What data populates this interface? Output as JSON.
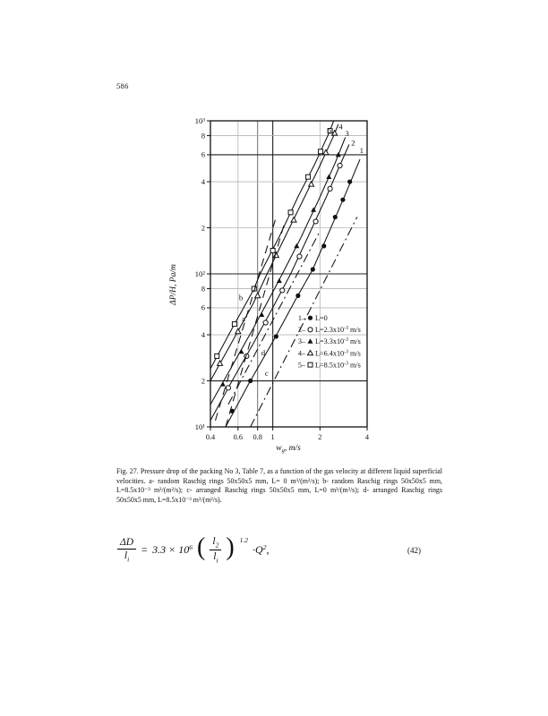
{
  "page": {
    "number": "586"
  },
  "chart_data": {
    "type": "line",
    "xscale": "log",
    "yscale": "log",
    "xlim": [
      0.4,
      4
    ],
    "ylim": [
      10,
      1000
    ],
    "xlabel": "wg, m/s",
    "xlabel_parts": {
      "main": "w",
      "sub": "g",
      "rest": ", m/s"
    },
    "ylabel": "ΔP/H, Pa/m",
    "x_ticks": [
      {
        "v": 0.4,
        "label": "0.4"
      },
      {
        "v": 0.6,
        "label": "0.6"
      },
      {
        "v": 0.8,
        "label": "0.8"
      },
      {
        "v": 1,
        "label": "1"
      },
      {
        "v": 2,
        "label": "2"
      },
      {
        "v": 4,
        "label": "4"
      }
    ],
    "y_ticks": [
      {
        "v": 1000,
        "label": "10³"
      },
      {
        "v": 800,
        "label": "8"
      },
      {
        "v": 600,
        "label": "6"
      },
      {
        "v": 400,
        "label": "4"
      },
      {
        "v": 200,
        "label": "2"
      },
      {
        "v": 100,
        "label": "10²"
      },
      {
        "v": 80,
        "label": "8"
      },
      {
        "v": 60,
        "label": "6"
      },
      {
        "v": 40,
        "label": "4"
      },
      {
        "v": 20,
        "label": "2"
      },
      {
        "v": 10,
        "label": "10¹"
      }
    ],
    "grid": {
      "x": [
        {
          "v": 0.6,
          "shade": "light"
        },
        {
          "v": 0.8,
          "shade": "medium"
        },
        {
          "v": 1,
          "shade": "dark"
        },
        {
          "v": 2,
          "shade": "light"
        }
      ],
      "y": [
        {
          "v": 800,
          "shade": "light"
        },
        {
          "v": 600,
          "shade": "dark"
        },
        {
          "v": 400,
          "shade": "light"
        },
        {
          "v": 200,
          "shade": "light"
        },
        {
          "v": 100,
          "shade": "dark"
        },
        {
          "v": 80,
          "shade": "light"
        },
        {
          "v": 60,
          "shade": "light"
        },
        {
          "v": 40,
          "shade": "light"
        },
        {
          "v": 20,
          "shade": "dark"
        }
      ]
    },
    "series": [
      {
        "id": "1",
        "name": "L=0",
        "dash": "solid",
        "marker": "circle-filled",
        "points": [
          [
            0.5,
            10
          ],
          [
            0.7,
            19
          ],
          [
            1.0,
            36
          ],
          [
            1.4,
            68
          ],
          [
            1.8,
            107
          ],
          [
            2.3,
            190
          ],
          [
            2.9,
            330
          ],
          [
            3.6,
            560
          ]
        ],
        "markers": [
          [
            0.55,
            12.7
          ],
          [
            0.72,
            20
          ],
          [
            1.05,
            39
          ],
          [
            1.45,
            72
          ],
          [
            1.8,
            107
          ],
          [
            2.12,
            152
          ],
          [
            2.5,
            235
          ],
          [
            2.8,
            305
          ],
          [
            3.1,
            400
          ]
        ],
        "label": {
          "text": "1",
          "w": 3.69,
          "P": 641
        }
      },
      {
        "id": "2",
        "name": "L=2.3x10-3 m/s",
        "dash": "solid",
        "marker": "circle-open",
        "points": [
          [
            0.4,
            11
          ],
          [
            0.55,
            20
          ],
          [
            0.75,
            35
          ],
          [
            1.0,
            60
          ],
          [
            1.3,
            100
          ],
          [
            1.7,
            180
          ],
          [
            2.2,
            320
          ],
          [
            2.7,
            520
          ],
          [
            3.07,
            700
          ]
        ],
        "markers": [
          [
            0.52,
            18
          ],
          [
            0.68,
            29
          ],
          [
            0.9,
            48
          ],
          [
            1.15,
            78
          ],
          [
            1.48,
            130
          ],
          [
            1.88,
            220
          ],
          [
            2.32,
            360
          ],
          [
            2.68,
            510
          ]
        ],
        "label": {
          "text": "2",
          "w": 3.26,
          "P": 717
        }
      },
      {
        "id": "3",
        "name": "L=3.3x10-3 m/s",
        "dash": "solid",
        "marker": "triangle-filled",
        "points": [
          [
            0.4,
            14
          ],
          [
            0.55,
            25
          ],
          [
            0.75,
            44
          ],
          [
            1.0,
            76
          ],
          [
            1.15,
            100
          ],
          [
            1.5,
            170
          ],
          [
            1.95,
            300
          ],
          [
            2.5,
            530
          ],
          [
            2.9,
            780
          ]
        ],
        "markers": [
          [
            0.48,
            19
          ],
          [
            0.63,
            31
          ],
          [
            0.85,
            54
          ],
          [
            1.1,
            90
          ],
          [
            1.42,
            152
          ],
          [
            1.82,
            262
          ],
          [
            2.28,
            430
          ],
          [
            2.62,
            600
          ]
        ],
        "label": {
          "text": "3",
          "w": 2.98,
          "P": 828
        }
      },
      {
        "id": "4",
        "name": "L=6.4x10-3 m/s",
        "dash": "solid",
        "marker": "triangle-open",
        "points": [
          [
            0.4,
            20
          ],
          [
            0.55,
            36
          ],
          [
            0.75,
            64
          ],
          [
            0.92,
            100
          ],
          [
            1.2,
            175
          ],
          [
            1.6,
            320
          ],
          [
            2.0,
            510
          ],
          [
            2.45,
            800
          ],
          [
            2.62,
            950
          ]
        ],
        "markers": [
          [
            0.46,
            26
          ],
          [
            0.6,
            42
          ],
          [
            0.8,
            72
          ],
          [
            1.05,
            132
          ],
          [
            1.36,
            225
          ],
          [
            1.76,
            385
          ],
          [
            2.18,
            620
          ],
          [
            2.48,
            830
          ]
        ],
        "label": {
          "text": "4",
          "w": 2.71,
          "P": 918
        }
      },
      {
        "id": "5",
        "name": "L=8.5x10-3 m/s",
        "dash": "solid",
        "marker": "square-open",
        "points": [
          [
            0.4,
            24
          ],
          [
            0.55,
            44
          ],
          [
            0.75,
            78
          ],
          [
            0.83,
            100
          ],
          [
            1.1,
            175
          ],
          [
            1.45,
            320
          ],
          [
            1.85,
            520
          ],
          [
            2.28,
            830
          ],
          [
            2.45,
            1000
          ]
        ],
        "markers": [
          [
            0.44,
            29
          ],
          [
            0.57,
            47
          ],
          [
            0.76,
            80
          ],
          [
            1.0,
            142
          ],
          [
            1.3,
            252
          ],
          [
            1.68,
            430
          ],
          [
            2.02,
            630
          ],
          [
            2.32,
            860
          ]
        ],
        "label": {
          "text": "5",
          "w": 2.3,
          "P": 866
        }
      },
      {
        "id": "a",
        "name": "random Raschig rings 50x50x5 mm, L=0",
        "dash": "dash",
        "marker": null,
        "points": [
          [
            0.5,
            10
          ],
          [
            1.18,
            210
          ]
        ],
        "label": {
          "text": "a",
          "w": 0.651,
          "P": 51
        }
      },
      {
        "id": "b",
        "name": "random Raschig rings 50x50x5 mm, L=8.5x10-3",
        "dash": "dash",
        "marker": null,
        "points": [
          [
            0.43,
            11
          ],
          [
            1.06,
            243
          ]
        ],
        "label": {
          "text": "b",
          "w": 0.626,
          "P": 70
        }
      },
      {
        "id": "c",
        "name": "arranged Raschig rings 50x50x5 mm, L=0",
        "dash": "dashdot",
        "marker": null,
        "points": [
          [
            0.72,
            10
          ],
          [
            3.45,
            235
          ]
        ],
        "label": {
          "text": "c",
          "w": 0.915,
          "P": 22.4
        }
      },
      {
        "id": "d",
        "name": "arranged Raschig rings 50x50x5 mm, L=8.5x10-3",
        "dash": "dashdot",
        "marker": null,
        "points": [
          [
            0.52,
            14
          ],
          [
            2.0,
            190
          ]
        ],
        "label": {
          "text": "d",
          "w": 0.869,
          "P": 30.6
        }
      }
    ],
    "legend": [
      {
        "index": "1",
        "sep": "–",
        "marker": "circle-filled",
        "prefix": "L=0",
        "exp": "",
        "suffix": ""
      },
      {
        "index": "2",
        "sep": "–",
        "marker": "circle-open",
        "prefix": "L=2.3x10",
        "exp": "-3",
        "suffix": " m/s"
      },
      {
        "index": "3",
        "sep": "–",
        "marker": "triangle-filled",
        "prefix": "L=3.3x10",
        "exp": "-3",
        "suffix": " m/s"
      },
      {
        "index": "4",
        "sep": "–",
        "marker": "triangle-open",
        "prefix": "L=6.4x10",
        "exp": "-3",
        "suffix": " m/s"
      },
      {
        "index": "5",
        "sep": "–",
        "marker": "square-open",
        "prefix": "L=8.5x10",
        "exp": "-3",
        "suffix": " m/s"
      }
    ]
  },
  "caption": {
    "text": "Fig. 27. Pressure drop of the packing No 3, Table 7, as a function of the gas velocity at different liquid superficial velocities. a- random Raschig rings 50x50x5 mm, L= 0 m³/(m²/s); b- random Raschig rings 50x50x5 mm, L=8.5x10⁻³ m³/(m²/s); c- arranged Raschig rings 50x50x5 mm, L=0 m³/(m²/s); d- arranged Raschig rings 50x50x5 mm, L=8.5x10⁻³ m³/(m²/s)."
  },
  "equation": {
    "lhs_num": "ΔD",
    "lhs_den_base": "l",
    "lhs_den_sub": "i",
    "rel": "=",
    "coeff_base": "3.3 × 10",
    "coeff_exp": "6",
    "inner_num_base": "l",
    "inner_num_sub": "2",
    "inner_den_base": "l",
    "inner_den_sub": "i",
    "paren_open": "(",
    "paren_close": ")",
    "outer_exp": "1.2",
    "dot": "·",
    "rhs_base": "Q",
    "rhs_exp": "2",
    "comma": ",",
    "number": "(42)"
  }
}
